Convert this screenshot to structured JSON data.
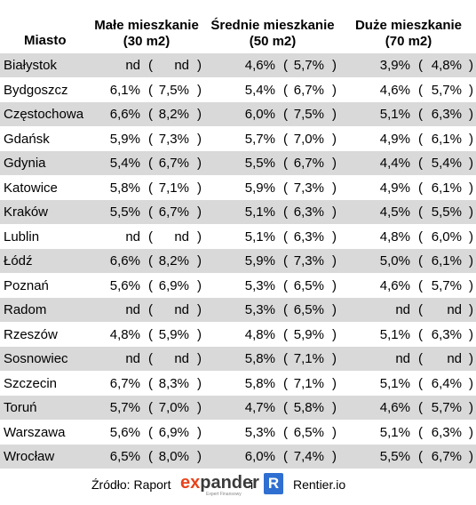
{
  "table": {
    "header": {
      "city": "Miasto",
      "columns": [
        {
          "title": "Małe mieszkanie",
          "subtitle": "(30 m2)"
        },
        {
          "title": "Średnie mieszkanie",
          "subtitle": "(50 m2)"
        },
        {
          "title": "Duże mieszkanie",
          "subtitle": "(70 m2)"
        }
      ]
    },
    "open": "(",
    "close": ")",
    "rows": [
      {
        "city": "Białystok",
        "values": [
          [
            "nd",
            "nd"
          ],
          [
            "4,6%",
            "5,7%"
          ],
          [
            "3,9%",
            "4,8%"
          ]
        ]
      },
      {
        "city": "Bydgoszcz",
        "values": [
          [
            "6,1%",
            "7,5%"
          ],
          [
            "5,4%",
            "6,7%"
          ],
          [
            "4,6%",
            "5,7%"
          ]
        ]
      },
      {
        "city": "Częstochowa",
        "values": [
          [
            "6,6%",
            "8,2%"
          ],
          [
            "6,0%",
            "7,5%"
          ],
          [
            "5,1%",
            "6,3%"
          ]
        ]
      },
      {
        "city": "Gdańsk",
        "values": [
          [
            "5,9%",
            "7,3%"
          ],
          [
            "5,7%",
            "7,0%"
          ],
          [
            "4,9%",
            "6,1%"
          ]
        ]
      },
      {
        "city": "Gdynia",
        "values": [
          [
            "5,4%",
            "6,7%"
          ],
          [
            "5,5%",
            "6,7%"
          ],
          [
            "4,4%",
            "5,4%"
          ]
        ]
      },
      {
        "city": "Katowice",
        "values": [
          [
            "5,8%",
            "7,1%"
          ],
          [
            "5,9%",
            "7,3%"
          ],
          [
            "4,9%",
            "6,1%"
          ]
        ]
      },
      {
        "city": "Kraków",
        "values": [
          [
            "5,5%",
            "6,7%"
          ],
          [
            "5,1%",
            "6,3%"
          ],
          [
            "4,5%",
            "5,5%"
          ]
        ]
      },
      {
        "city": "Lublin",
        "values": [
          [
            "nd",
            "nd"
          ],
          [
            "5,1%",
            "6,3%"
          ],
          [
            "4,8%",
            "6,0%"
          ]
        ]
      },
      {
        "city": "Łódź",
        "values": [
          [
            "6,6%",
            "8,2%"
          ],
          [
            "5,9%",
            "7,3%"
          ],
          [
            "5,0%",
            "6,1%"
          ]
        ]
      },
      {
        "city": "Poznań",
        "values": [
          [
            "5,6%",
            "6,9%"
          ],
          [
            "5,3%",
            "6,5%"
          ],
          [
            "4,6%",
            "5,7%"
          ]
        ]
      },
      {
        "city": "Radom",
        "values": [
          [
            "nd",
            "nd"
          ],
          [
            "5,3%",
            "6,5%"
          ],
          [
            "nd",
            "nd"
          ]
        ]
      },
      {
        "city": "Rzeszów",
        "values": [
          [
            "4,8%",
            "5,9%"
          ],
          [
            "4,8%",
            "5,9%"
          ],
          [
            "5,1%",
            "6,3%"
          ]
        ]
      },
      {
        "city": "Sosnowiec",
        "values": [
          [
            "nd",
            "nd"
          ],
          [
            "5,8%",
            "7,1%"
          ],
          [
            "nd",
            "nd"
          ]
        ]
      },
      {
        "city": "Szczecin",
        "values": [
          [
            "6,7%",
            "8,3%"
          ],
          [
            "5,8%",
            "7,1%"
          ],
          [
            "5,1%",
            "6,4%"
          ]
        ]
      },
      {
        "city": "Toruń",
        "values": [
          [
            "5,7%",
            "7,0%"
          ],
          [
            "4,7%",
            "5,8%"
          ],
          [
            "4,6%",
            "5,7%"
          ]
        ]
      },
      {
        "city": "Warszawa",
        "values": [
          [
            "5,6%",
            "6,9%"
          ],
          [
            "5,3%",
            "6,5%"
          ],
          [
            "5,1%",
            "6,3%"
          ]
        ]
      },
      {
        "city": "Wrocław",
        "values": [
          [
            "6,5%",
            "8,0%"
          ],
          [
            "6,0%",
            "7,4%"
          ],
          [
            "5,5%",
            "6,7%"
          ]
        ]
      }
    ]
  },
  "footer": {
    "source": "Źródło: Raport",
    "brand_e": "e",
    "brand_x": "x",
    "brand_rest": "pander",
    "brand_tag": "Expert Finansowy",
    "and": "i",
    "logo_letter": "R",
    "site": "Rentier.io"
  }
}
